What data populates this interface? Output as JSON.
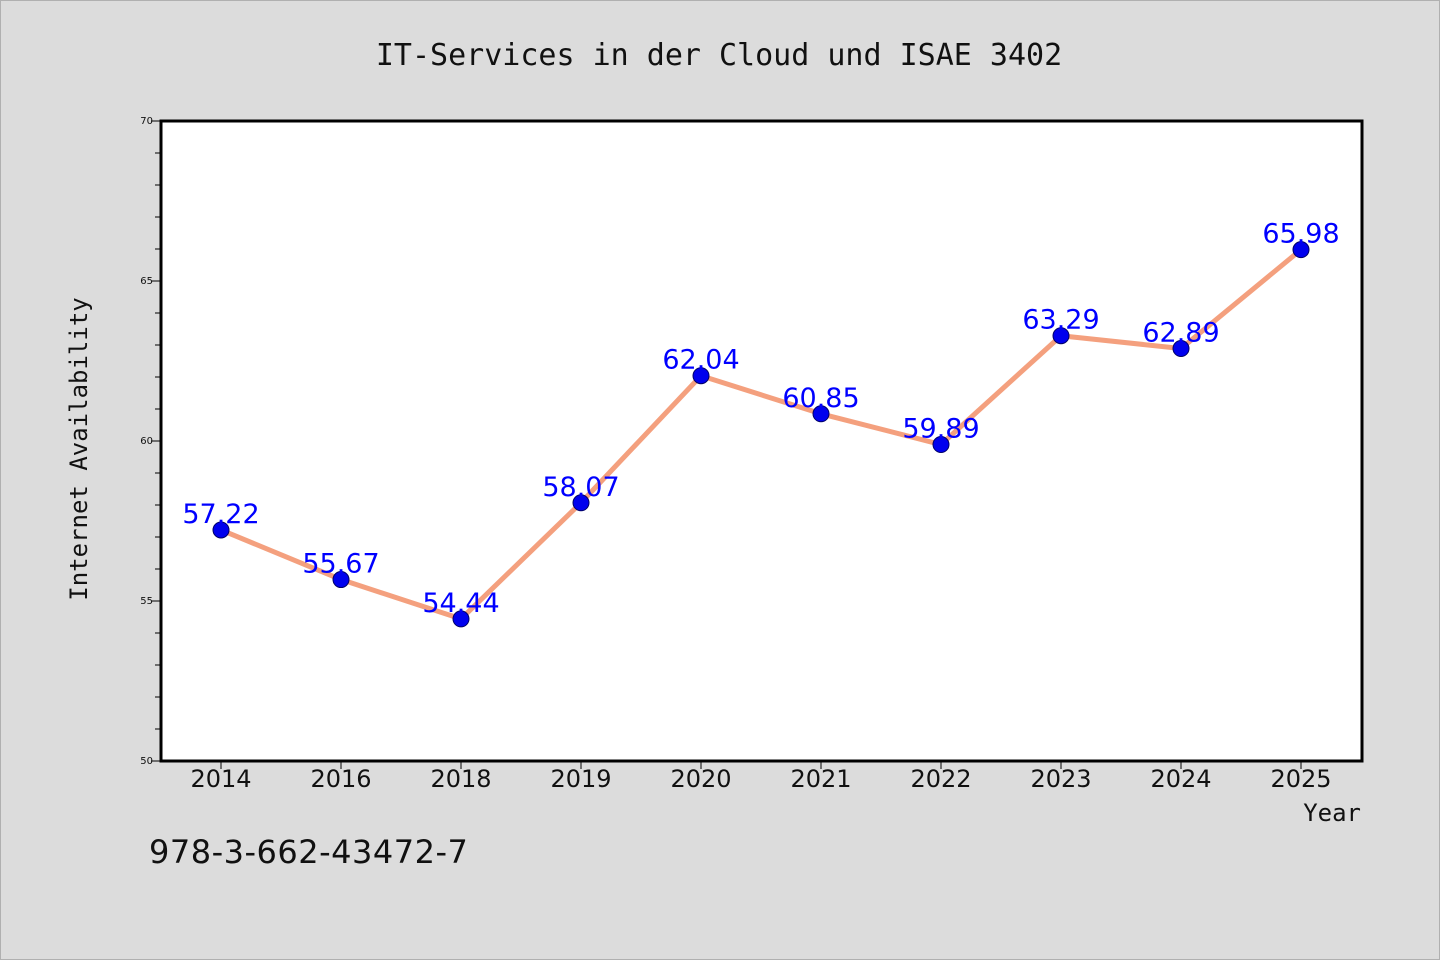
{
  "chart_data": {
    "type": "line",
    "title": "IT-Services in der Cloud und ISAE 3402",
    "xlabel": "Year",
    "ylabel": "Internet Availability",
    "categories": [
      "2014",
      "2016",
      "2018",
      "2019",
      "2020",
      "2021",
      "2022",
      "2023",
      "2024",
      "2025"
    ],
    "series": [
      {
        "values": [
          57.22,
          55.67,
          54.44,
          58.07,
          62.04,
          60.85,
          59.89,
          63.29,
          62.89,
          65.98
        ]
      }
    ],
    "data_labels": [
      "57.22",
      "55.67",
      "54.44",
      "58.07",
      "62.04",
      "60.85",
      "59.89",
      "63.29",
      "62.89",
      "65.98"
    ],
    "ylim": [
      50,
      70
    ],
    "y_ticks": [
      "50",
      "55",
      "60",
      "65",
      "70"
    ],
    "grid": false,
    "legend": "none",
    "colors": {
      "line": "#f4a07e",
      "marker": "#0000ee",
      "data_label": "#0000ff",
      "background": "#dcdcdc",
      "plot_area": "#ffffff"
    }
  },
  "footer": {
    "isbn": "978-3-662-43472-7"
  }
}
